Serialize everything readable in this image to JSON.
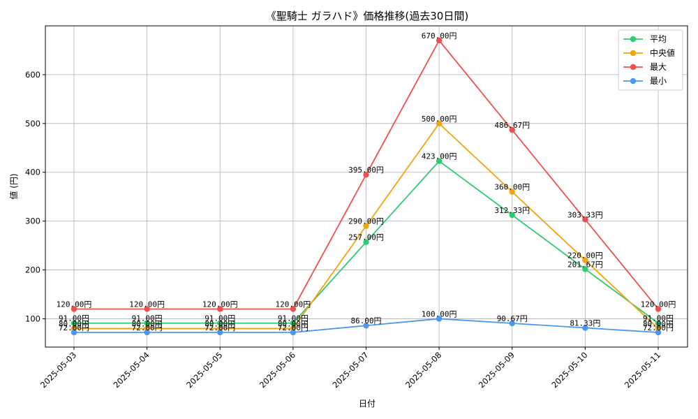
{
  "chart_data": {
    "type": "line",
    "title": "《聖騎士 ガラハド》価格推移(過去30日間)",
    "xlabel": "日付",
    "ylabel": "値 (円)",
    "categories": [
      "2025-05-03",
      "2025-05-04",
      "2025-05-05",
      "2025-05-06",
      "2025-05-07",
      "2025-05-08",
      "2025-05-09",
      "2025-05-10",
      "2025-05-11"
    ],
    "ylim": [
      42,
      700
    ],
    "yticks": [
      100,
      200,
      300,
      400,
      500,
      600
    ],
    "grid": true,
    "legend_position": "top-right",
    "unit_suffix": "円",
    "series": [
      {
        "name": "平均",
        "color": "#2ecc71",
        "values": [
          91.0,
          91.0,
          91.0,
          91.0,
          257.0,
          423.0,
          312.33,
          201.67,
          91.0
        ]
      },
      {
        "name": "中央値",
        "color": "#f5a30a",
        "values": [
          80.0,
          80.0,
          80.0,
          80.0,
          290.0,
          500.0,
          360.0,
          220.0,
          80.0
        ]
      },
      {
        "name": "最大",
        "color": "#f0504d",
        "values": [
          120.0,
          120.0,
          120.0,
          120.0,
          395.0,
          670.0,
          486.67,
          303.33,
          120.0
        ]
      },
      {
        "name": "最小",
        "color": "#4a98f0",
        "values": [
          72.0,
          72.0,
          72.0,
          72.0,
          86.0,
          100.0,
          90.67,
          81.33,
          72.0
        ]
      }
    ]
  }
}
